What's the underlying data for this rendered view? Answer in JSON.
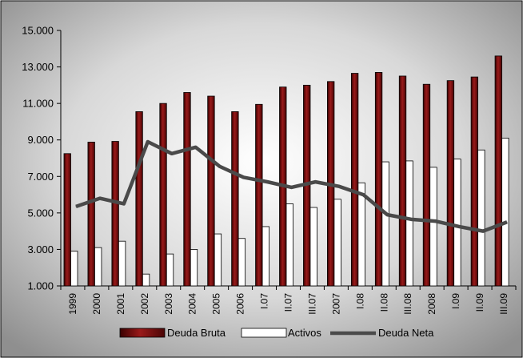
{
  "chart_data": {
    "type": "bar",
    "categories": [
      "1999",
      "2000",
      "2001",
      "2002",
      "2003",
      "2004",
      "2005",
      "2006",
      "I.07",
      "II.07",
      "III.07",
      "2007",
      "I.08",
      "II.08",
      "III.08",
      "2008",
      "I.09",
      "II.09",
      "III.09"
    ],
    "series": [
      {
        "name": "Deuda Bruta",
        "type": "bar",
        "color": "#7a0f0f",
        "values": [
          8250,
          8880,
          8920,
          10550,
          11000,
          11600,
          11400,
          10550,
          10950,
          11900,
          12000,
          12200,
          12650,
          12700,
          12500,
          12050,
          12250,
          12450,
          13600
        ]
      },
      {
        "name": "Activos",
        "type": "bar",
        "color": "#ffffff",
        "values": [
          2900,
          3100,
          3450,
          1650,
          2750,
          3000,
          3850,
          3600,
          4250,
          5500,
          5300,
          5750,
          6650,
          7800,
          7850,
          7500,
          7950,
          8450,
          9100
        ]
      },
      {
        "name": "Deuda Neta",
        "type": "line",
        "color": "#4a4a4a",
        "values": [
          5350,
          5800,
          5500,
          8900,
          8250,
          8600,
          7550,
          6950,
          6700,
          6400,
          6700,
          6450,
          6000,
          4900,
          4650,
          4550,
          4250,
          4000,
          4500
        ]
      }
    ],
    "yticks": [
      "1.000",
      "3.000",
      "5.000",
      "7.000",
      "9.000",
      "11.000",
      "13.000",
      "15.000"
    ],
    "ylim": [
      1000,
      15000
    ],
    "legend_position": "bottom",
    "grid": false
  }
}
